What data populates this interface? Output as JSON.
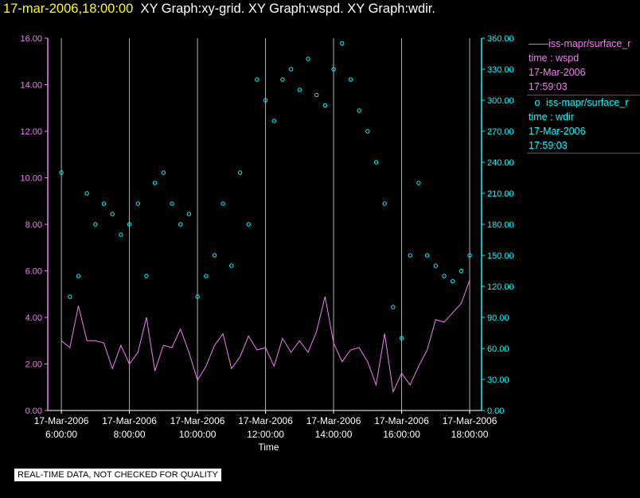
{
  "header": {
    "timestamp": "17-mar-2006,18:00:00",
    "graphs": "XY Graph:xy-grid.  XY Graph:wspd.  XY Graph:wdir."
  },
  "legend": [
    {
      "marker": "——",
      "name": "iss-mapr/surface_r",
      "var": "time : wspd",
      "date": "17-Mar-2006",
      "time": "17:59:03",
      "color": "#ee82ee"
    },
    {
      "marker": "o",
      "name": "iss-mapr/surface_r",
      "var": "time : wdir",
      "date": "17-Mar-2006",
      "time": "17:59:03",
      "color": "#00ffff"
    }
  ],
  "quality_note": "REAL-TIME DATA, NOT CHECKED FOR QUALITY",
  "chart_data": {
    "type": "line",
    "xlabel": "Time",
    "x_range_hours": [
      5.6,
      18.35
    ],
    "x_ticks": [
      {
        "hour": 6,
        "date": "17-Mar-2006",
        "time": "6:00:00"
      },
      {
        "hour": 8,
        "date": "17-Mar-2006",
        "time": "8:00:00"
      },
      {
        "hour": 10,
        "date": "17-Mar-2006",
        "time": "10:00:00"
      },
      {
        "hour": 12,
        "date": "17-Mar-2006",
        "time": "12:00:00"
      },
      {
        "hour": 14,
        "date": "17-Mar-2006",
        "time": "14:00:00"
      },
      {
        "hour": 16,
        "date": "17-Mar-2006",
        "time": "16:00:00"
      },
      {
        "hour": 18,
        "date": "17-Mar-2006",
        "time": "18:00:00"
      }
    ],
    "grid": "vertical",
    "series": [
      {
        "name": "iss-mapr/surface_r time : wspd",
        "style": "line",
        "axis": "left",
        "color": "#ee82ee",
        "ylim": [
          0,
          16
        ],
        "y_ticks": [
          "0.00",
          "2.00",
          "4.00",
          "6.00",
          "8.00",
          "10.00",
          "12.00",
          "14.00",
          "16.00"
        ],
        "x": [
          6.0,
          6.25,
          6.5,
          6.75,
          7.0,
          7.25,
          7.5,
          7.75,
          8.0,
          8.25,
          8.5,
          8.75,
          9.0,
          9.25,
          9.5,
          9.75,
          10.0,
          10.25,
          10.5,
          10.75,
          11.0,
          11.25,
          11.5,
          11.75,
          12.0,
          12.25,
          12.5,
          12.75,
          13.0,
          13.25,
          13.5,
          13.75,
          14.0,
          14.25,
          14.5,
          14.75,
          15.0,
          15.25,
          15.5,
          15.75,
          16.0,
          16.25,
          16.5,
          16.75,
          17.0,
          17.25,
          17.5,
          17.75,
          18.0
        ],
        "y": [
          3.0,
          2.7,
          4.5,
          3.0,
          3.0,
          2.9,
          1.8,
          2.8,
          2.0,
          2.5,
          4.0,
          1.7,
          2.8,
          2.7,
          3.5,
          2.5,
          1.3,
          1.9,
          2.8,
          3.3,
          1.8,
          2.3,
          3.2,
          2.6,
          2.7,
          1.9,
          3.1,
          2.5,
          3.0,
          2.5,
          3.4,
          4.9,
          2.9,
          2.1,
          2.6,
          2.7,
          2.1,
          1.1,
          3.3,
          0.8,
          1.6,
          1.1,
          1.9,
          2.6,
          3.9,
          3.8,
          4.2,
          4.6,
          5.6
        ]
      },
      {
        "name": "iss-mapr/surface_r time : wdir",
        "style": "scatter",
        "axis": "right",
        "color": "#00ffff",
        "ylim": [
          0,
          360
        ],
        "y_ticks": [
          "0.00",
          "30.00",
          "60.00",
          "90.00",
          "120.00",
          "150.00",
          "180.00",
          "210.00",
          "240.00",
          "270.00",
          "300.00",
          "330.00",
          "360.00"
        ],
        "x": [
          6.0,
          6.25,
          6.5,
          6.75,
          7.0,
          7.25,
          7.5,
          7.75,
          8.0,
          8.25,
          8.5,
          8.75,
          9.0,
          9.25,
          9.5,
          9.75,
          10.0,
          10.25,
          10.5,
          10.75,
          11.0,
          11.25,
          11.5,
          11.75,
          12.0,
          12.25,
          12.5,
          12.75,
          13.0,
          13.25,
          13.5,
          13.75,
          14.0,
          14.25,
          14.5,
          14.75,
          15.0,
          15.25,
          15.5,
          15.75,
          16.0,
          16.25,
          16.5,
          16.75,
          17.0,
          17.25,
          17.5,
          17.75,
          18.0
        ],
        "y": [
          230,
          110,
          130,
          210,
          180,
          200,
          190,
          170,
          180,
          200,
          130,
          220,
          230,
          200,
          180,
          190,
          110,
          130,
          150,
          200,
          140,
          230,
          180,
          320,
          300,
          280,
          320,
          330,
          310,
          340,
          305,
          295,
          330,
          355,
          320,
          290,
          270,
          240,
          200,
          100,
          70,
          150,
          220,
          150,
          140,
          130,
          125,
          135,
          150
        ]
      }
    ]
  }
}
